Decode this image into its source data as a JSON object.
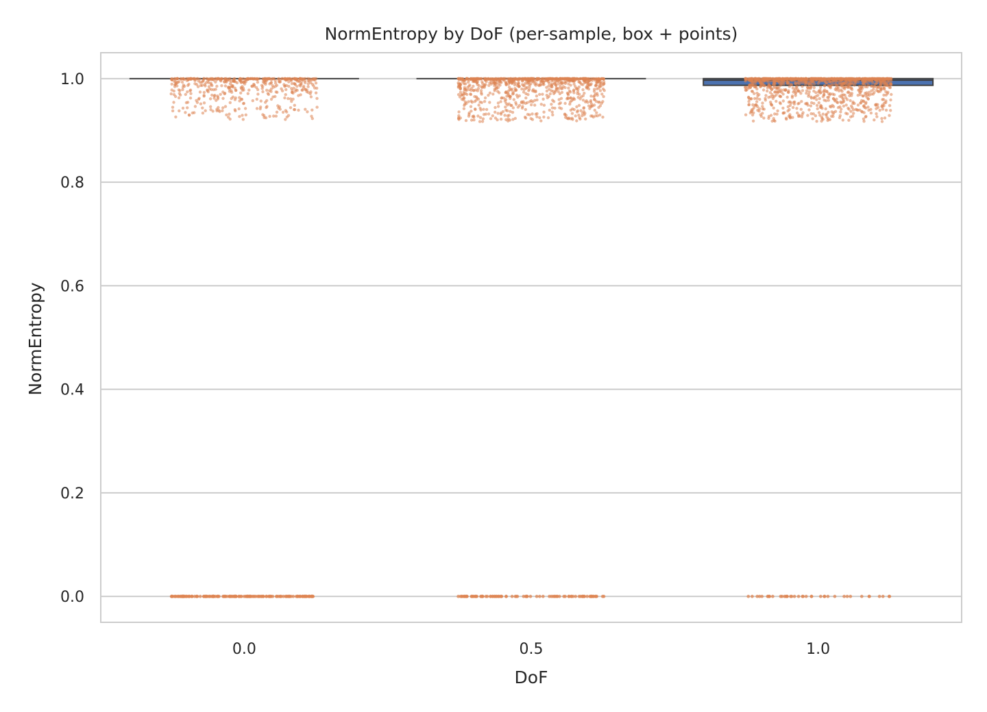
{
  "chart_data": {
    "type": "box",
    "title": "NormEntropy by DoF (per-sample, box + points)",
    "xlabel": "DoF",
    "ylabel": "NormEntropy",
    "categories": [
      "0.0",
      "0.5",
      "1.0"
    ],
    "ylim": [
      -0.05,
      1.05
    ],
    "yticks": [
      "0.0",
      "0.2",
      "0.4",
      "0.6",
      "0.8",
      "1.0"
    ],
    "grid": true,
    "box_color": "#4c72b0",
    "point_color": "#dd8452",
    "boxes": [
      {
        "category": "0.0",
        "q1": 1.0,
        "median": 1.0,
        "q3": 1.0,
        "whisker_low": 1.0,
        "whisker_high": 1.0
      },
      {
        "category": "0.5",
        "q1": 1.0,
        "median": 1.0,
        "q3": 1.0,
        "whisker_low": 1.0,
        "whisker_high": 1.0
      },
      {
        "category": "1.0",
        "q1": 0.987,
        "median": 0.997,
        "q3": 1.0,
        "whisker_low": 0.967,
        "whisker_high": 1.0
      }
    ],
    "points": [
      {
        "category": "0.0",
        "high_cluster_range": [
          0.92,
          1.0
        ],
        "zero_value": 0.0
      },
      {
        "category": "0.5",
        "high_cluster_range": [
          0.917,
          1.0
        ],
        "zero_value": 0.0
      },
      {
        "category": "1.0",
        "high_cluster_range": [
          0.917,
          1.0
        ],
        "zero_value": 0.0
      }
    ]
  }
}
